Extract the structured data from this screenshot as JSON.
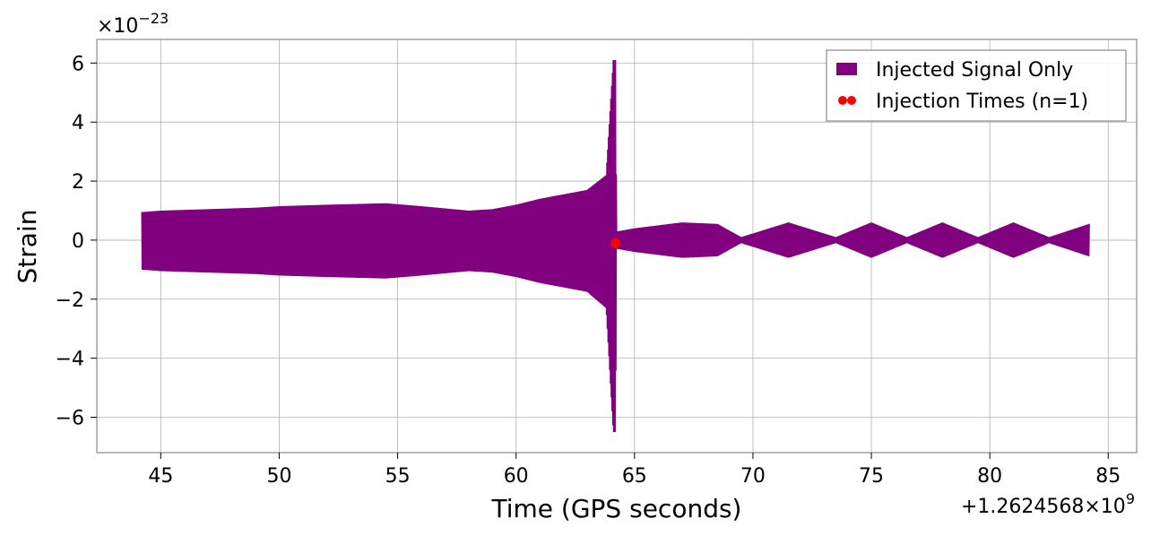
{
  "chart_data": {
    "type": "line",
    "title": "",
    "xlabel": "Time (GPS seconds)",
    "ylabel": "Strain",
    "x_offset_text": "+1.2624568×10",
    "x_offset_exponent": "9",
    "y_scale_text": "×10",
    "y_scale_exponent": "−23",
    "xlim": [
      42.3,
      86.2
    ],
    "ylim": [
      -7.2,
      6.8
    ],
    "x_ticks": [
      45,
      50,
      55,
      60,
      65,
      70,
      75,
      80,
      85
    ],
    "x_tick_labels": [
      "45",
      "50",
      "55",
      "60",
      "65",
      "70",
      "75",
      "80",
      "85"
    ],
    "y_ticks": [
      -6,
      -4,
      -2,
      0,
      2,
      4,
      6
    ],
    "y_tick_labels": [
      "−6",
      "−4",
      "−2",
      "0",
      "2",
      "4",
      "6"
    ],
    "grid": true,
    "legend_position": "top-right",
    "series": [
      {
        "name": "Injected Signal Only",
        "color": "#800080",
        "kind": "oscillating-envelope",
        "envelope": {
          "t": [
            44.2,
            45,
            47,
            49,
            50,
            52,
            54.5,
            56,
            58,
            59,
            60,
            61,
            62,
            63,
            63.8,
            64.1,
            64.2,
            64.25,
            64.3,
            65,
            67,
            68.5,
            69.5,
            71.5,
            73.5,
            75,
            76.5,
            78,
            79.5,
            81,
            82.5,
            84.2
          ],
          "upper": [
            0.95,
            1.0,
            1.05,
            1.1,
            1.15,
            1.2,
            1.25,
            1.15,
            1.0,
            1.05,
            1.2,
            1.4,
            1.55,
            1.7,
            2.2,
            6.1,
            6.1,
            0.3,
            0.3,
            0.4,
            0.6,
            0.55,
            0.1,
            0.6,
            0.1,
            0.6,
            0.1,
            0.6,
            0.1,
            0.6,
            0.1,
            0.55
          ],
          "lower": [
            -1.0,
            -1.05,
            -1.1,
            -1.15,
            -1.2,
            -1.25,
            -1.3,
            -1.2,
            -1.05,
            -1.1,
            -1.25,
            -1.45,
            -1.6,
            -1.75,
            -2.3,
            -6.5,
            -6.5,
            -0.3,
            -0.3,
            -0.4,
            -0.6,
            -0.55,
            -0.1,
            -0.6,
            -0.1,
            -0.6,
            -0.1,
            -0.6,
            -0.1,
            -0.6,
            -0.1,
            -0.55
          ]
        }
      },
      {
        "name": "Injection Times (n=1)",
        "color": "#ff0000",
        "kind": "scatter",
        "points": [
          {
            "x": 64.2,
            "y": -0.1
          }
        ]
      }
    ]
  }
}
